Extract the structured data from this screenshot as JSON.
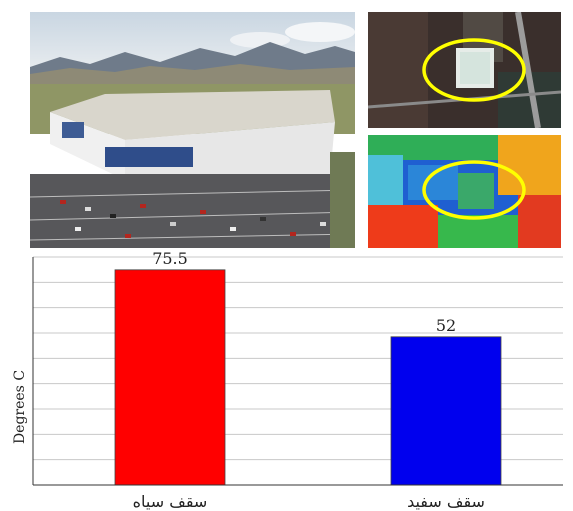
{
  "chart_data": {
    "type": "bar",
    "categories": [
      "سقف سیاه",
      "سقف سفید"
    ],
    "values": [
      75.5,
      52
    ],
    "value_labels": [
      "75.5",
      "52"
    ],
    "colors": [
      "#ff0000",
      "#0000ee"
    ],
    "title": "",
    "xlabel": "",
    "ylabel": "Degrees C",
    "ylim": [
      0,
      80
    ],
    "grid": true
  }
}
